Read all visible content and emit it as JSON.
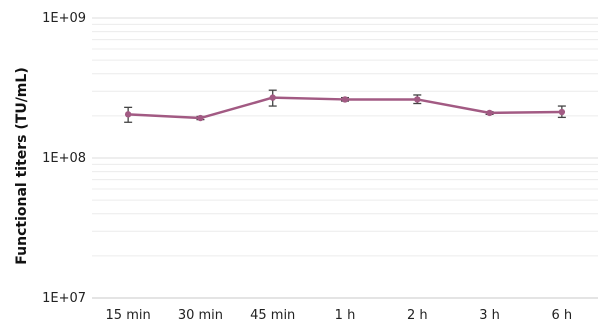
{
  "chart_data": {
    "type": "line",
    "title": "",
    "xlabel": "",
    "ylabel": "Functional titers (TU/mL)",
    "yscale": "log",
    "ylim": [
      10000000,
      1000000000
    ],
    "yticks": [
      10000000,
      100000000,
      1000000000
    ],
    "ytick_labels": [
      "1E+07",
      "1E+08",
      "1E+09"
    ],
    "grid": "horizontal minor gridlines (log scale)",
    "legend": "none",
    "categories": [
      "15 min",
      "30 min",
      "45 min",
      "1 h",
      "2 h",
      "3 h",
      "6 h"
    ],
    "series": [
      {
        "values": [
          205000000,
          193000000,
          270000000,
          262000000,
          262000000,
          210000000,
          213000000
        ],
        "error_low": [
          180000000,
          188000000,
          235000000,
          255000000,
          245000000,
          205000000,
          195000000
        ],
        "error_high": [
          230000000,
          198000000,
          305000000,
          270000000,
          282000000,
          214000000,
          235000000
        ],
        "color": "#a25a83",
        "marker": "circle"
      }
    ],
    "colors": {
      "line": "#a25a83",
      "error_bar": "#444444",
      "grid": "#ececec",
      "axis": "#c8c8c8"
    }
  }
}
